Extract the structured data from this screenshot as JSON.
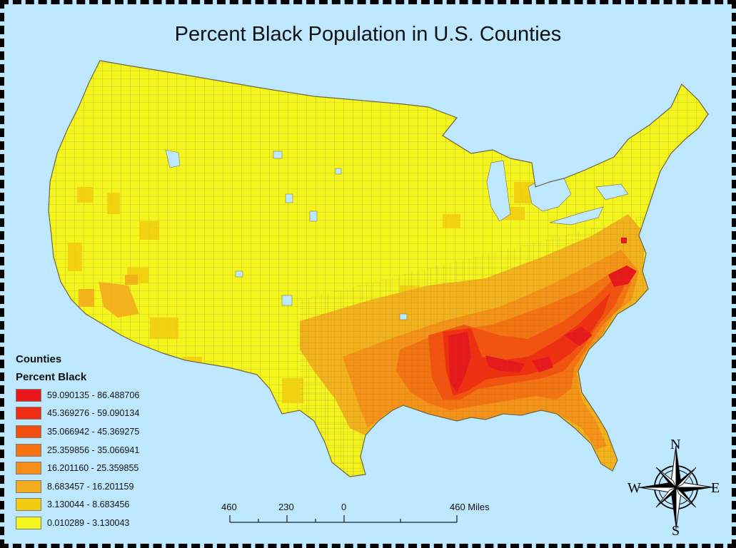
{
  "title": "Percent Black Population in U.S. Counties",
  "legend": {
    "layer_title": "Counties",
    "field_title": "Percent Black",
    "classes": [
      {
        "label": "59.090135 - 86.488706",
        "color": "#e8171b"
      },
      {
        "label": "45.369276 - 59.090134",
        "color": "#ef2d12"
      },
      {
        "label": "35.066942 - 45.369275",
        "color": "#f24f0f"
      },
      {
        "label": "25.359856 - 35.066941",
        "color": "#f57112"
      },
      {
        "label": "16.201160 - 25.359855",
        "color": "#f58f1a"
      },
      {
        "label": "8.683457 - 16.201159",
        "color": "#f2ac1c"
      },
      {
        "label": "3.130044 - 8.683456",
        "color": "#f1cc0f"
      },
      {
        "label": "0.010289 - 3.130043",
        "color": "#f5f51e"
      }
    ]
  },
  "scale_bar": {
    "ticks": [
      "460",
      "230",
      "0",
      "460 Miles"
    ]
  },
  "north_arrow": {
    "n": "N",
    "s": "S",
    "e": "E",
    "w": "W"
  },
  "colors": {
    "water": "#bee8ff",
    "county_border": "#8a7f4a"
  }
}
